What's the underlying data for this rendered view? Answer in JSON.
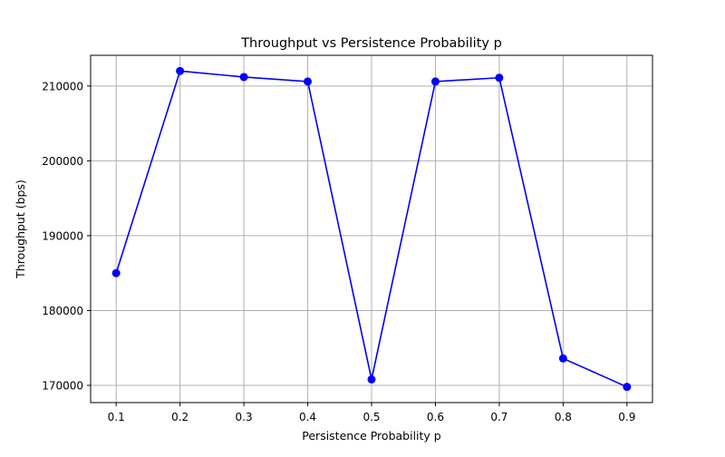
{
  "chart_data": {
    "type": "line",
    "title": "Throughput vs Persistence Probability p",
    "xlabel": "Persistence Probability p",
    "ylabel": "Throughput (bps)",
    "x": [
      0.1,
      0.2,
      0.3,
      0.4,
      0.5,
      0.6,
      0.7,
      0.8,
      0.9
    ],
    "series": [
      {
        "values": [
          185000,
          212000,
          211200,
          210600,
          170800,
          210600,
          211100,
          173600,
          169800
        ],
        "color": "#0000ff",
        "marker": "circle"
      }
    ],
    "x_ticks": [
      0.1,
      0.2,
      0.3,
      0.4,
      0.5,
      0.6,
      0.7,
      0.8,
      0.9
    ],
    "x_tick_labels": [
      "0.1",
      "0.2",
      "0.3",
      "0.4",
      "0.5",
      "0.6",
      "0.7",
      "0.8",
      "0.9"
    ],
    "y_ticks": [
      170000,
      180000,
      190000,
      200000,
      210000
    ],
    "y_tick_labels": [
      "170000",
      "180000",
      "190000",
      "200000",
      "210000"
    ],
    "xlim": [
      0.06,
      0.94
    ],
    "ylim": [
      167700,
      214100
    ],
    "grid": true,
    "grid_color": "#b0b0b0",
    "legend": false
  }
}
